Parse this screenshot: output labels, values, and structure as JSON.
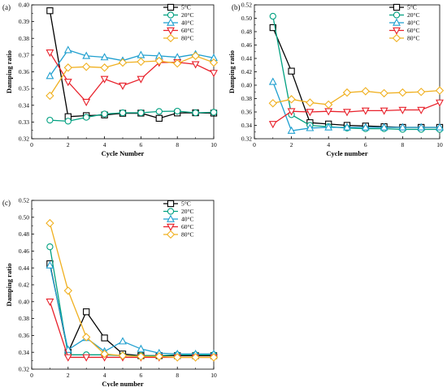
{
  "chart_data": [
    {
      "type": "line",
      "panel_label": "(a)",
      "xlabel": "Cycle Number",
      "ylabel": "Damping ratio",
      "xlim": [
        0,
        10
      ],
      "ylim": [
        0.32,
        0.4
      ],
      "xticks": [
        0,
        2,
        4,
        6,
        8,
        10
      ],
      "xtick_labels": [
        "0",
        "2",
        "4",
        "6",
        "8",
        "10"
      ],
      "yticks": [
        0.32,
        0.33,
        0.34,
        0.35,
        0.36,
        0.37,
        0.38,
        0.39,
        0.4
      ],
      "ytick_labels": [
        "0.32",
        "0.33",
        "0.34",
        "0.35",
        "0.36",
        "0.37",
        "0.38",
        "0.39",
        "0.40"
      ],
      "grid": false,
      "legend_position": "top-right",
      "x": [
        1,
        2,
        3,
        4,
        5,
        6,
        7,
        8,
        9,
        10
      ],
      "series": [
        {
          "name": "5°C",
          "color": "#000000",
          "marker": "square",
          "values": [
            0.3965,
            0.3332,
            0.3338,
            0.3342,
            0.3352,
            0.3353,
            0.3322,
            0.3354,
            0.3355,
            0.3353
          ]
        },
        {
          "name": "20°C",
          "color": "#00a080",
          "marker": "circle",
          "values": [
            0.3311,
            0.3305,
            0.3328,
            0.3348,
            0.3355,
            0.3355,
            0.3363,
            0.3365,
            0.3355,
            0.3358
          ]
        },
        {
          "name": "40°C",
          "color": "#1f9fcf",
          "marker": "triangle-up",
          "values": [
            0.3575,
            0.373,
            0.3695,
            0.3687,
            0.3667,
            0.37,
            0.3695,
            0.3687,
            0.3705,
            0.3683
          ]
        },
        {
          "name": "60°C",
          "color": "#e8202a",
          "marker": "triangle-down",
          "values": [
            0.3715,
            0.354,
            0.342,
            0.3557,
            0.3517,
            0.3557,
            0.3655,
            0.3657,
            0.3645,
            0.3593
          ]
        },
        {
          "name": "80°C",
          "color": "#f0b020",
          "marker": "diamond",
          "values": [
            0.3457,
            0.3625,
            0.363,
            0.3625,
            0.3655,
            0.366,
            0.3665,
            0.365,
            0.3695,
            0.3655
          ]
        }
      ]
    },
    {
      "type": "line",
      "panel_label": "(b)",
      "xlabel": "Cycle number",
      "ylabel": "Damping ratio",
      "xlim": [
        0,
        10
      ],
      "ylim": [
        0.32,
        0.52
      ],
      "xticks": [
        0,
        2,
        4,
        6,
        8,
        10
      ],
      "xtick_labels": [
        "0",
        "2",
        "4",
        "6",
        "8",
        "10"
      ],
      "yticks": [
        0.32,
        0.34,
        0.36,
        0.38,
        0.4,
        0.42,
        0.44,
        0.46,
        0.48,
        0.5,
        0.52
      ],
      "ytick_labels": [
        "0.32",
        "0.34",
        "0.36",
        "0.38",
        "0.40",
        "0.42",
        "0.44",
        "0.46",
        "0.48",
        "0.50",
        "0.52"
      ],
      "grid": false,
      "legend_position": "top-right",
      "x": [
        1,
        2,
        3,
        4,
        5,
        6,
        7,
        8,
        9,
        10
      ],
      "series": [
        {
          "name": "5°C",
          "color": "#000000",
          "marker": "square",
          "values": [
            0.486,
            0.421,
            0.344,
            0.342,
            0.34,
            0.339,
            0.338,
            0.337,
            0.337,
            0.337
          ]
        },
        {
          "name": "20°C",
          "color": "#00a080",
          "marker": "circle",
          "values": [
            0.503,
            0.356,
            0.34,
            0.338,
            0.336,
            0.335,
            0.335,
            0.334,
            0.334,
            0.334
          ]
        },
        {
          "name": "40°C",
          "color": "#1f9fcf",
          "marker": "triangle-up",
          "values": [
            0.405,
            0.332,
            0.336,
            0.337,
            0.337,
            0.337,
            0.337,
            0.337,
            0.337,
            0.337
          ]
        },
        {
          "name": "60°C",
          "color": "#e8202a",
          "marker": "triangle-down",
          "values": [
            0.342,
            0.361,
            0.36,
            0.361,
            0.36,
            0.362,
            0.362,
            0.363,
            0.363,
            0.374
          ]
        },
        {
          "name": "80°C",
          "color": "#f0b020",
          "marker": "diamond",
          "values": [
            0.373,
            0.379,
            0.374,
            0.371,
            0.389,
            0.391,
            0.388,
            0.389,
            0.39,
            0.392
          ]
        }
      ]
    },
    {
      "type": "line",
      "panel_label": "(c)",
      "xlabel": "Cycle number",
      "ylabel": "Damping ratio",
      "xlim": [
        0,
        10
      ],
      "ylim": [
        0.32,
        0.52
      ],
      "xticks": [
        0,
        2,
        4,
        6,
        8,
        10
      ],
      "xtick_labels": [
        "0",
        "2",
        "4",
        "6",
        "8",
        "10"
      ],
      "yticks": [
        0.32,
        0.34,
        0.36,
        0.38,
        0.4,
        0.42,
        0.44,
        0.46,
        0.48,
        0.5,
        0.52
      ],
      "ytick_labels": [
        "0.32",
        "0.34",
        "0.36",
        "0.38",
        "0.40",
        "0.42",
        "0.44",
        "0.46",
        "0.48",
        "0.50",
        "0.52"
      ],
      "grid": false,
      "legend_position": "top-right",
      "x": [
        1,
        2,
        3,
        4,
        5,
        6,
        7,
        8,
        9,
        10
      ],
      "series": [
        {
          "name": "5°C",
          "color": "#000000",
          "marker": "square",
          "values": [
            0.445,
            0.34,
            0.388,
            0.357,
            0.338,
            0.336,
            0.336,
            0.336,
            0.336,
            0.336
          ]
        },
        {
          "name": "20°C",
          "color": "#00a080",
          "marker": "circle",
          "values": [
            0.465,
            0.337,
            0.337,
            0.337,
            0.336,
            0.336,
            0.336,
            0.337,
            0.337,
            0.337
          ]
        },
        {
          "name": "40°C",
          "color": "#1f9fcf",
          "marker": "triangle-up",
          "values": [
            0.443,
            0.343,
            0.357,
            0.341,
            0.353,
            0.344,
            0.339,
            0.338,
            0.338,
            0.338
          ]
        },
        {
          "name": "60°C",
          "color": "#e8202a",
          "marker": "triangle-down",
          "values": [
            0.4,
            0.334,
            0.334,
            0.334,
            0.334,
            0.334,
            0.334,
            0.334,
            0.334,
            0.334
          ]
        },
        {
          "name": "80°C",
          "color": "#f0b020",
          "marker": "diamond",
          "values": [
            0.493,
            0.413,
            0.358,
            0.338,
            0.336,
            0.335,
            0.335,
            0.334,
            0.334,
            0.334
          ]
        }
      ]
    }
  ]
}
